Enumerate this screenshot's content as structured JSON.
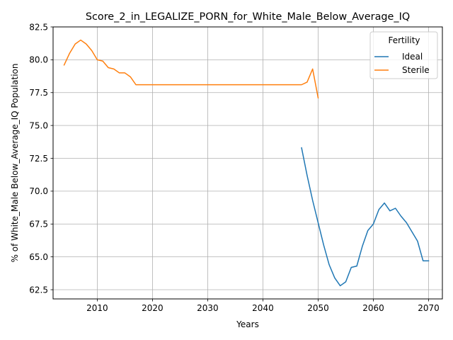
{
  "chart_data": {
    "type": "line",
    "title": "Score_2_in_LEGALIZE_PORN_for_White_Male_Below_Average_IQ",
    "xlabel": "Years",
    "ylabel": "% of White_Male Below_Average_IQ Population",
    "xlim": [
      2002,
      2072.5
    ],
    "ylim": [
      61.8,
      82.5
    ],
    "x_ticks": [
      2010,
      2020,
      2030,
      2040,
      2050,
      2060,
      2070
    ],
    "y_ticks": [
      62.5,
      65.0,
      67.5,
      70.0,
      72.5,
      75.0,
      77.5,
      80.0,
      82.5
    ],
    "grid": true,
    "legend": {
      "title": "Fertility",
      "placement": "top-right"
    },
    "series": [
      {
        "name": "Ideal",
        "color": "#1f77b4",
        "x": [
          2047,
          2048,
          2049,
          2050,
          2051,
          2052,
          2053,
          2054,
          2055,
          2056,
          2057,
          2058,
          2059,
          2060,
          2061,
          2062,
          2063,
          2064,
          2065,
          2066,
          2067,
          2068,
          2069,
          2070
        ],
        "y": [
          73.3,
          71.2,
          69.3,
          67.6,
          65.9,
          64.4,
          63.4,
          62.8,
          63.1,
          64.2,
          64.3,
          65.8,
          67.0,
          67.5,
          68.6,
          69.1,
          68.5,
          68.7,
          68.1,
          67.6,
          66.9,
          66.2,
          64.7,
          64.7
        ]
      },
      {
        "name": "Sterile",
        "color": "#ff7f0e",
        "x": [
          2004,
          2005,
          2006,
          2007,
          2008,
          2009,
          2010,
          2011,
          2012,
          2013,
          2014,
          2015,
          2016,
          2017,
          2018,
          2019,
          2020,
          2021,
          2022,
          2023,
          2024,
          2025,
          2026,
          2027,
          2028,
          2029,
          2030,
          2031,
          2032,
          2033,
          2034,
          2035,
          2036,
          2037,
          2038,
          2039,
          2040,
          2041,
          2042,
          2043,
          2044,
          2045,
          2046,
          2047,
          2048,
          2049,
          2050
        ],
        "y": [
          79.6,
          80.5,
          81.2,
          81.5,
          81.2,
          80.7,
          80.0,
          79.9,
          79.4,
          79.3,
          79.0,
          79.0,
          78.7,
          78.1,
          78.1,
          78.1,
          78.1,
          78.1,
          78.1,
          78.1,
          78.1,
          78.1,
          78.1,
          78.1,
          78.1,
          78.1,
          78.1,
          78.1,
          78.1,
          78.1,
          78.1,
          78.1,
          78.1,
          78.1,
          78.1,
          78.1,
          78.1,
          78.1,
          78.1,
          78.1,
          78.1,
          78.1,
          78.1,
          78.1,
          78.3,
          79.3,
          77.1
        ]
      }
    ]
  }
}
